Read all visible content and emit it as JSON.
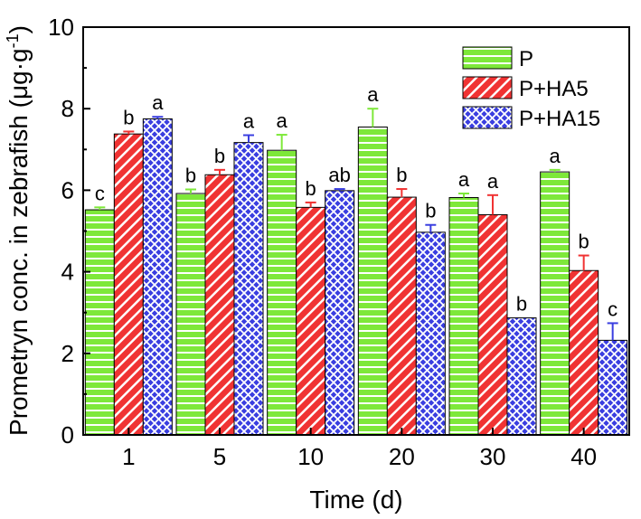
{
  "chart_data": {
    "type": "bar",
    "title": "",
    "xlabel": "Time (d)",
    "ylabel": "Prometryn conc. in zebrafish",
    "ylabel_unit_prefix": "μg·g",
    "ylabel_unit_exp": "-1",
    "ylim": [
      0,
      10
    ],
    "yticks": [
      0,
      2,
      4,
      6,
      8,
      10
    ],
    "categories": [
      "1",
      "5",
      "10",
      "20",
      "30",
      "40"
    ],
    "series": [
      {
        "name": "P",
        "color": "#7ee83a",
        "pattern": "horizontal-stripes",
        "values": [
          5.52,
          5.92,
          6.98,
          7.55,
          5.82,
          6.45
        ],
        "errors": [
          0.06,
          0.1,
          0.38,
          0.45,
          0.1,
          0.05
        ],
        "labels": [
          "c",
          "b",
          "a",
          "a",
          "a",
          "a"
        ]
      },
      {
        "name": "P+HA5",
        "color": "#f03333",
        "pattern": "diagonal-stripes",
        "values": [
          7.38,
          6.38,
          5.58,
          5.83,
          5.4,
          4.03
        ],
        "errors": [
          0.06,
          0.12,
          0.12,
          0.2,
          0.48,
          0.37
        ],
        "labels": [
          "b",
          "b",
          "b",
          "b",
          "a",
          "b"
        ]
      },
      {
        "name": "P+HA15",
        "color": "#3a3ee0",
        "pattern": "crosshatch",
        "values": [
          7.75,
          7.17,
          5.99,
          4.97,
          2.87,
          2.32
        ],
        "errors": [
          0.05,
          0.18,
          0.04,
          0.18,
          0.0,
          0.42
        ],
        "labels": [
          "a",
          "a",
          "ab",
          "b",
          "b",
          "c"
        ]
      }
    ],
    "legend": "top-right",
    "grid": false
  }
}
